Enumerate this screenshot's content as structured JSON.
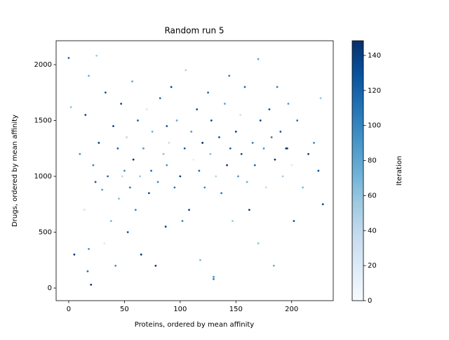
{
  "chart_data": {
    "type": "scatter",
    "title": "Random run 5",
    "x_label": "Proteins, ordered by mean affinity",
    "y_label": "Drugs, ordered by mean affinity",
    "colorbar_label": "Iteration",
    "colormap": "Blues",
    "xlim": [
      -11.3,
      237.3
    ],
    "xticks": [
      0,
      50,
      100,
      150,
      200
    ],
    "ylim": [
      -113,
      2214
    ],
    "yticks": [
      0,
      500,
      1000,
      1500,
      2000
    ],
    "clim": [
      0,
      148.4
    ],
    "cticks": [
      0,
      20,
      40,
      60,
      80,
      100,
      120,
      140
    ],
    "x": [
      0,
      2,
      5,
      10,
      14,
      15,
      17,
      18,
      20,
      22,
      24,
      25,
      27,
      30,
      32,
      33,
      35,
      38,
      40,
      42,
      44,
      45,
      47,
      50,
      52,
      53,
      55,
      57,
      58,
      60,
      62,
      64,
      65,
      67,
      70,
      72,
      74,
      75,
      78,
      80,
      82,
      85,
      87,
      88,
      90,
      92,
      95,
      97,
      100,
      102,
      104,
      105,
      108,
      110,
      112,
      115,
      117,
      118,
      120,
      122,
      125,
      127,
      128,
      130,
      132,
      135,
      137,
      140,
      142,
      144,
      145,
      147,
      150,
      152,
      154,
      155,
      158,
      160,
      162,
      165,
      167,
      170,
      172,
      175,
      177,
      180,
      182,
      184,
      185,
      187,
      190,
      192,
      195,
      197,
      200,
      202,
      205,
      210,
      215,
      220,
      224,
      226,
      228,
      18,
      48,
      88,
      130,
      170,
      196
    ],
    "y": [
      2060,
      1620,
      300,
      1200,
      700,
      1550,
      150,
      1900,
      30,
      1100,
      950,
      2080,
      1300,
      880,
      400,
      1750,
      1000,
      600,
      1450,
      200,
      1250,
      800,
      1650,
      1050,
      1350,
      500,
      900,
      1850,
      1150,
      700,
      1500,
      1000,
      300,
      1250,
      1600,
      850,
      1050,
      1400,
      200,
      950,
      1700,
      1200,
      550,
      1100,
      1300,
      1800,
      900,
      1500,
      1000,
      600,
      1250,
      1950,
      700,
      1400,
      1150,
      1600,
      1050,
      250,
      1300,
      900,
      1750,
      1200,
      1500,
      100,
      1000,
      1350,
      850,
      1650,
      1100,
      1900,
      1250,
      600,
      1400,
      1000,
      1550,
      1200,
      1800,
      950,
      700,
      1300,
      1100,
      400,
      1500,
      1250,
      900,
      1600,
      1350,
      200,
      1150,
      1800,
      1400,
      1000,
      1250,
      1650,
      1100,
      600,
      1500,
      900,
      1200,
      1300,
      1050,
      1700,
      750,
      350,
      1000,
      1450,
      80,
      2050,
      1250
    ],
    "c": [
      120,
      60,
      140,
      90,
      30,
      130,
      110,
      75,
      145,
      100,
      125,
      55,
      138,
      85,
      20,
      132,
      115,
      70,
      142,
      95,
      118,
      65,
      135,
      92,
      40,
      128,
      105,
      80,
      146,
      102,
      122,
      58,
      141,
      88,
      25,
      134,
      112,
      72,
      144,
      98,
      116,
      62,
      137,
      90,
      35,
      131,
      108,
      78,
      143,
      101,
      124,
      50,
      139,
      86,
      15,
      129,
      113,
      68,
      147,
      97,
      119,
      64,
      136,
      93,
      45,
      127,
      106,
      82,
      145,
      103,
      121,
      57,
      140,
      89,
      28,
      133,
      111,
      74,
      144,
      99,
      117,
      61,
      138,
      91,
      38,
      130,
      109,
      76,
      146,
      100,
      123,
      53,
      142,
      87,
      22,
      135,
      114,
      69,
      141,
      96,
      126,
      59,
      137,
      94,
      42,
      128,
      107,
      81,
      143
    ]
  }
}
